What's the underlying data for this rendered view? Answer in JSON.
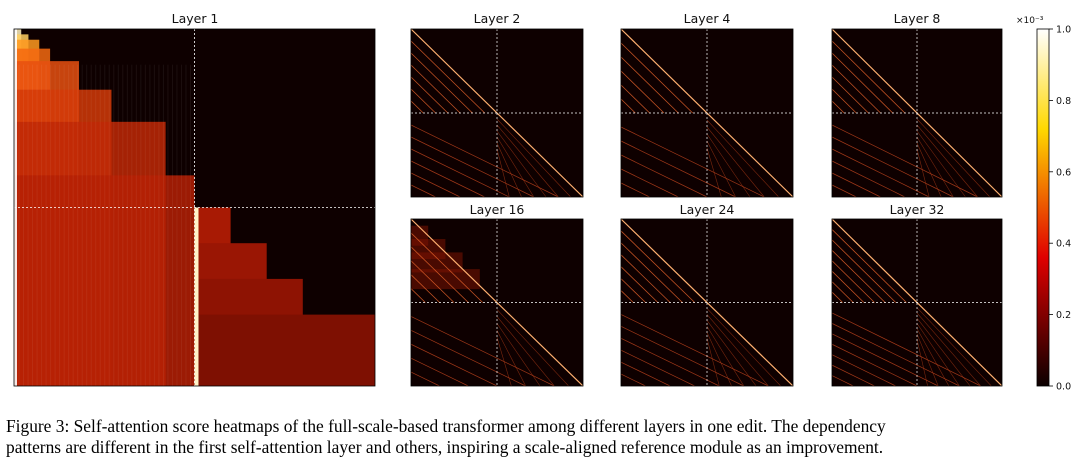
{
  "chart_data": {
    "type": "heatmap",
    "colormap": "hot",
    "panels": [
      {
        "title": "Layer 1"
      },
      {
        "title": "Layer 2"
      },
      {
        "title": "Layer 4"
      },
      {
        "title": "Layer 8"
      },
      {
        "title": "Layer 16"
      },
      {
        "title": "Layer 24"
      },
      {
        "title": "Layer 32"
      }
    ],
    "colorbar": {
      "exponent_label": "×10⁻³",
      "ticks": [
        "0.0",
        "0.2",
        "0.4",
        "0.6",
        "0.8",
        "1.0"
      ],
      "range": [
        0.0,
        1.0
      ]
    }
  },
  "caption": {
    "line1": "Figure 3: Self-attention score heatmaps of the full-scale-based transformer among different layers in one edit. The dependency",
    "line2": "patterns are different in the first self-attention layer and others, inspiring a scale-aligned reference module as an improvement."
  }
}
